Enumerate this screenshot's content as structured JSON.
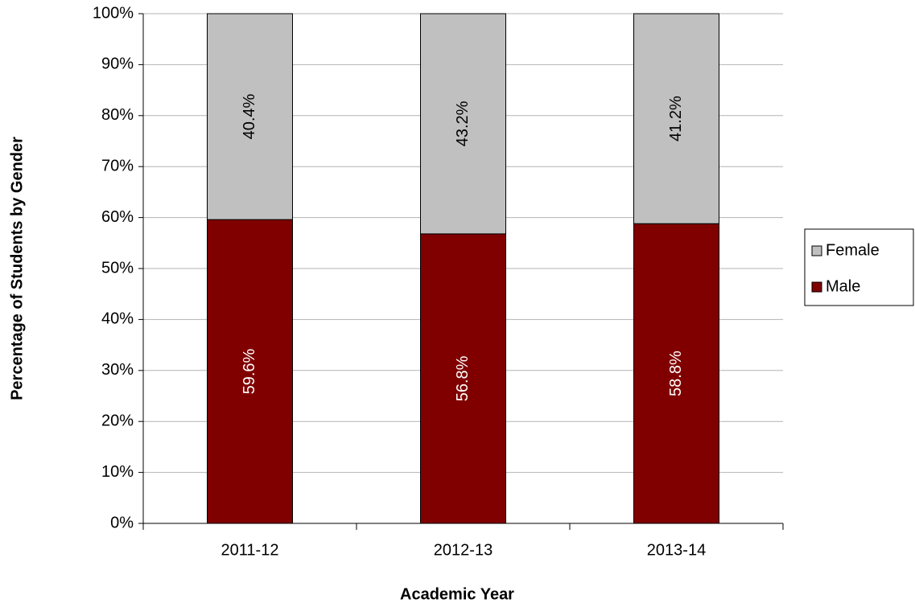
{
  "chart_data": {
    "type": "stacked-bar",
    "x_label": "Academic Year",
    "y_label": "Percentage of Students by Gender",
    "categories": [
      "2011-12",
      "2012-13",
      "2013-14"
    ],
    "series": [
      {
        "name": "Male",
        "color": "#800000",
        "values": [
          59.6,
          56.8,
          58.8
        ],
        "value_labels": [
          "59.6%",
          "56.8%",
          "58.8%"
        ]
      },
      {
        "name": "Female",
        "color": "#c0c0c0",
        "values": [
          40.4,
          43.2,
          41.2
        ],
        "value_labels": [
          "40.4%",
          "43.2%",
          "41.2%"
        ]
      }
    ],
    "ylim": [
      0,
      100
    ],
    "yticks": [
      {
        "value": 0,
        "label": "0%"
      },
      {
        "value": 10,
        "label": "10%"
      },
      {
        "value": 20,
        "label": "20%"
      },
      {
        "value": 30,
        "label": "30%"
      },
      {
        "value": 40,
        "label": "40%"
      },
      {
        "value": 50,
        "label": "50%"
      },
      {
        "value": 60,
        "label": "60%"
      },
      {
        "value": 70,
        "label": "70%"
      },
      {
        "value": 80,
        "label": "80%"
      },
      {
        "value": 90,
        "label": "90%"
      },
      {
        "value": 100,
        "label": "100%"
      }
    ],
    "grid": true,
    "legend": "right"
  }
}
